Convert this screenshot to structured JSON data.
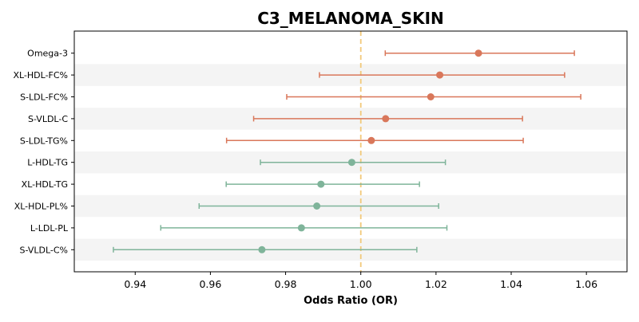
{
  "chart_data": {
    "type": "forest",
    "title": "C3_MELANOMA_SKIN",
    "xlabel": "Odds Ratio (OR)",
    "ylabel": "",
    "xlim": [
      0.9238,
      1.0708
    ],
    "xticks": [
      0.94,
      0.96,
      0.98,
      1.0,
      1.02,
      1.04,
      1.06
    ],
    "xtick_labels": [
      "0.94",
      "0.96",
      "0.98",
      "1.00",
      "1.02",
      "1.04",
      "1.06"
    ],
    "reference_line": 1.0,
    "grid": false,
    "row_banding": true,
    "colors": {
      "positive": "#d9775a",
      "negative": "#7fb49a",
      "reference_line": "#f2c97a",
      "band": "#f4f4f4"
    },
    "rows": [
      {
        "label": "Omega-3",
        "or": 1.0313,
        "lower": 1.0065,
        "upper": 1.0568
      },
      {
        "label": "XL-HDL-FC%",
        "or": 1.021,
        "lower": 0.989,
        "upper": 1.0542
      },
      {
        "label": "S-LDL-FC%",
        "or": 1.0186,
        "lower": 0.9803,
        "upper": 1.0585
      },
      {
        "label": "S-VLDL-C",
        "or": 1.0066,
        "lower": 0.9715,
        "upper": 1.043
      },
      {
        "label": "S-LDL-TG%",
        "or": 1.0028,
        "lower": 0.9643,
        "upper": 1.0432
      },
      {
        "label": "L-HDL-TG",
        "or": 0.9976,
        "lower": 0.9733,
        "upper": 1.0225
      },
      {
        "label": "XL-HDL-TG",
        "or": 0.9894,
        "lower": 0.9642,
        "upper": 1.0156
      },
      {
        "label": "XL-HDL-PL%",
        "or": 0.9883,
        "lower": 0.957,
        "upper": 1.0207
      },
      {
        "label": "L-LDL-PL",
        "or": 0.9842,
        "lower": 0.9468,
        "upper": 1.0229
      },
      {
        "label": "S-VLDL-C%",
        "or": 0.9737,
        "lower": 0.9342,
        "upper": 1.0149
      }
    ]
  }
}
